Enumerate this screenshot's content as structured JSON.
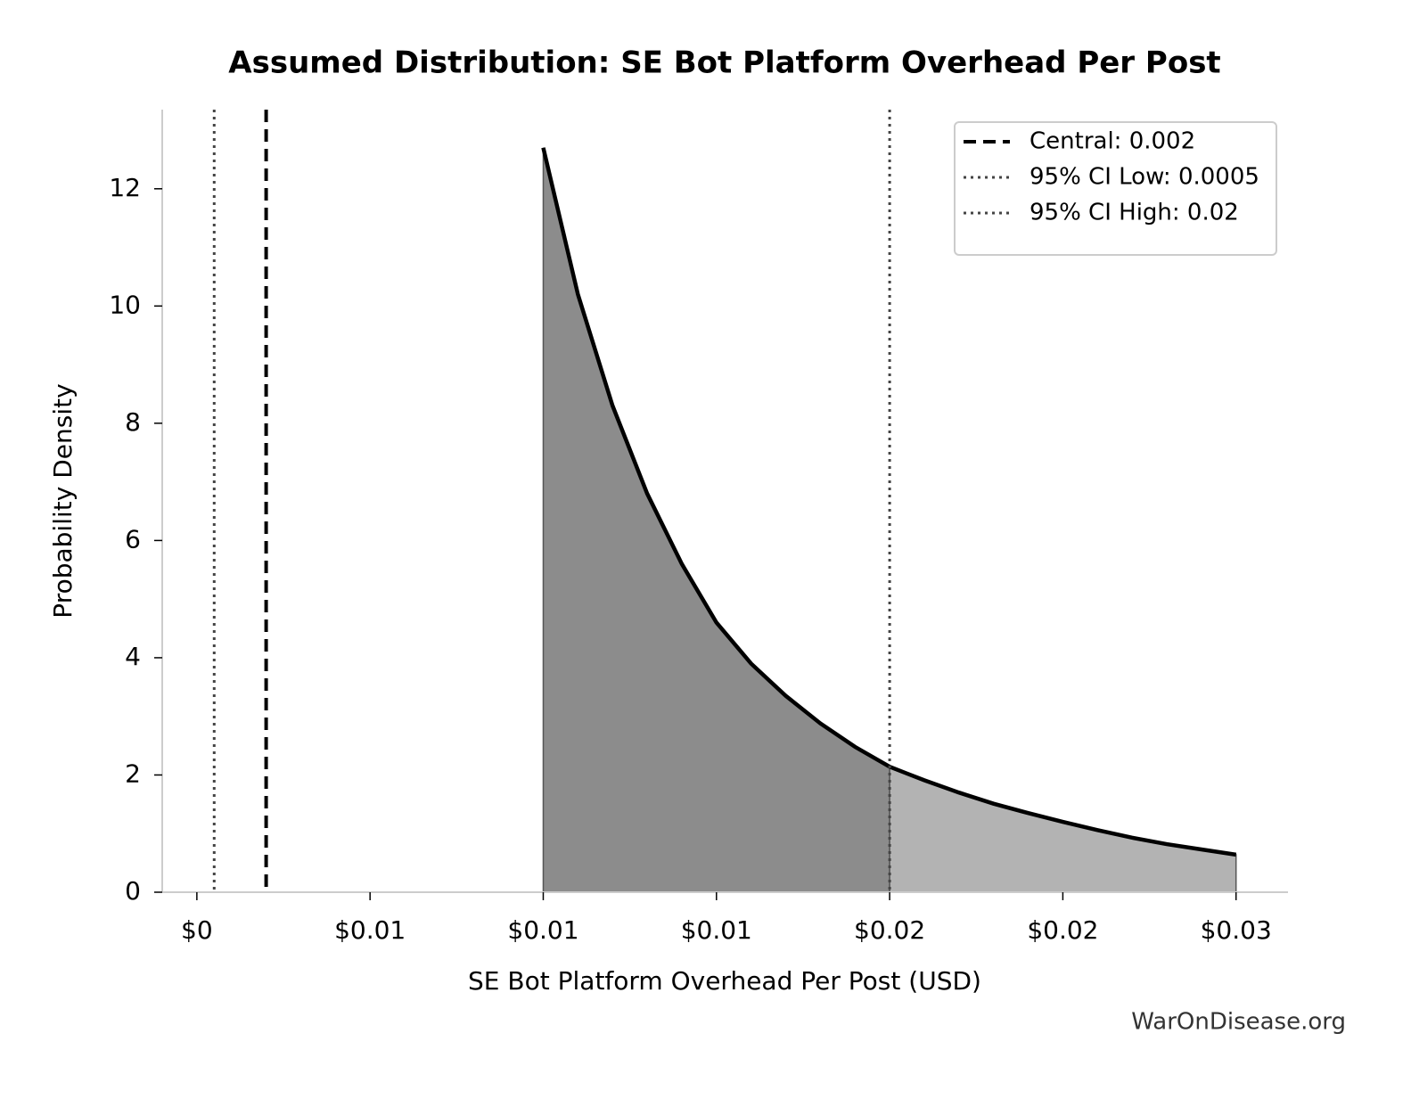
{
  "chart_data": {
    "type": "density",
    "title": "Assumed Distribution: SE Bot Platform Overhead Per Post",
    "x_label": "SE Bot Platform Overhead Per Post (USD)",
    "y_label": "Probability Density",
    "watermark": "WarOnDisease.org",
    "x": [
      0.01,
      0.011,
      0.012,
      0.013,
      0.014,
      0.015,
      0.016,
      0.017,
      0.018,
      0.019,
      0.02,
      0.021,
      0.022,
      0.023,
      0.024,
      0.025,
      0.026,
      0.027,
      0.028,
      0.029,
      0.03
    ],
    "values": [
      12.7,
      10.2,
      8.3,
      6.8,
      5.6,
      4.6,
      3.9,
      3.35,
      2.88,
      2.48,
      2.14,
      1.91,
      1.7,
      1.51,
      1.35,
      1.2,
      1.06,
      0.93,
      0.82,
      0.73,
      0.64
    ],
    "color": "#000000",
    "fill_inside": "#8c8c8c",
    "fill_outside": "#b3b3b3",
    "xlim": [
      -0.001,
      0.0315
    ],
    "ylim": [
      0,
      13.35
    ],
    "xticks": [
      {
        "value": 0,
        "label": "$0"
      },
      {
        "value": 0.005,
        "label": "$0.01"
      },
      {
        "value": 0.01,
        "label": "$0.01"
      },
      {
        "value": 0.015,
        "label": "$0.01"
      },
      {
        "value": 0.02,
        "label": "$0.02"
      },
      {
        "value": 0.025,
        "label": "$0.02"
      },
      {
        "value": 0.03,
        "label": "$0.03"
      }
    ],
    "yticks": [
      0,
      2,
      4,
      6,
      8,
      10,
      12
    ],
    "vlines": [
      {
        "name": "Central: 0.002",
        "value": 0.002,
        "style": "dashed",
        "color": "#000000"
      },
      {
        "name": "95% CI Low: 0.0005",
        "value": 0.0005,
        "style": "dotted",
        "color": "#444444"
      },
      {
        "name": "95% CI High: 0.02",
        "value": 0.02,
        "style": "dotted",
        "color": "#444444"
      }
    ],
    "legend": "upper right"
  }
}
